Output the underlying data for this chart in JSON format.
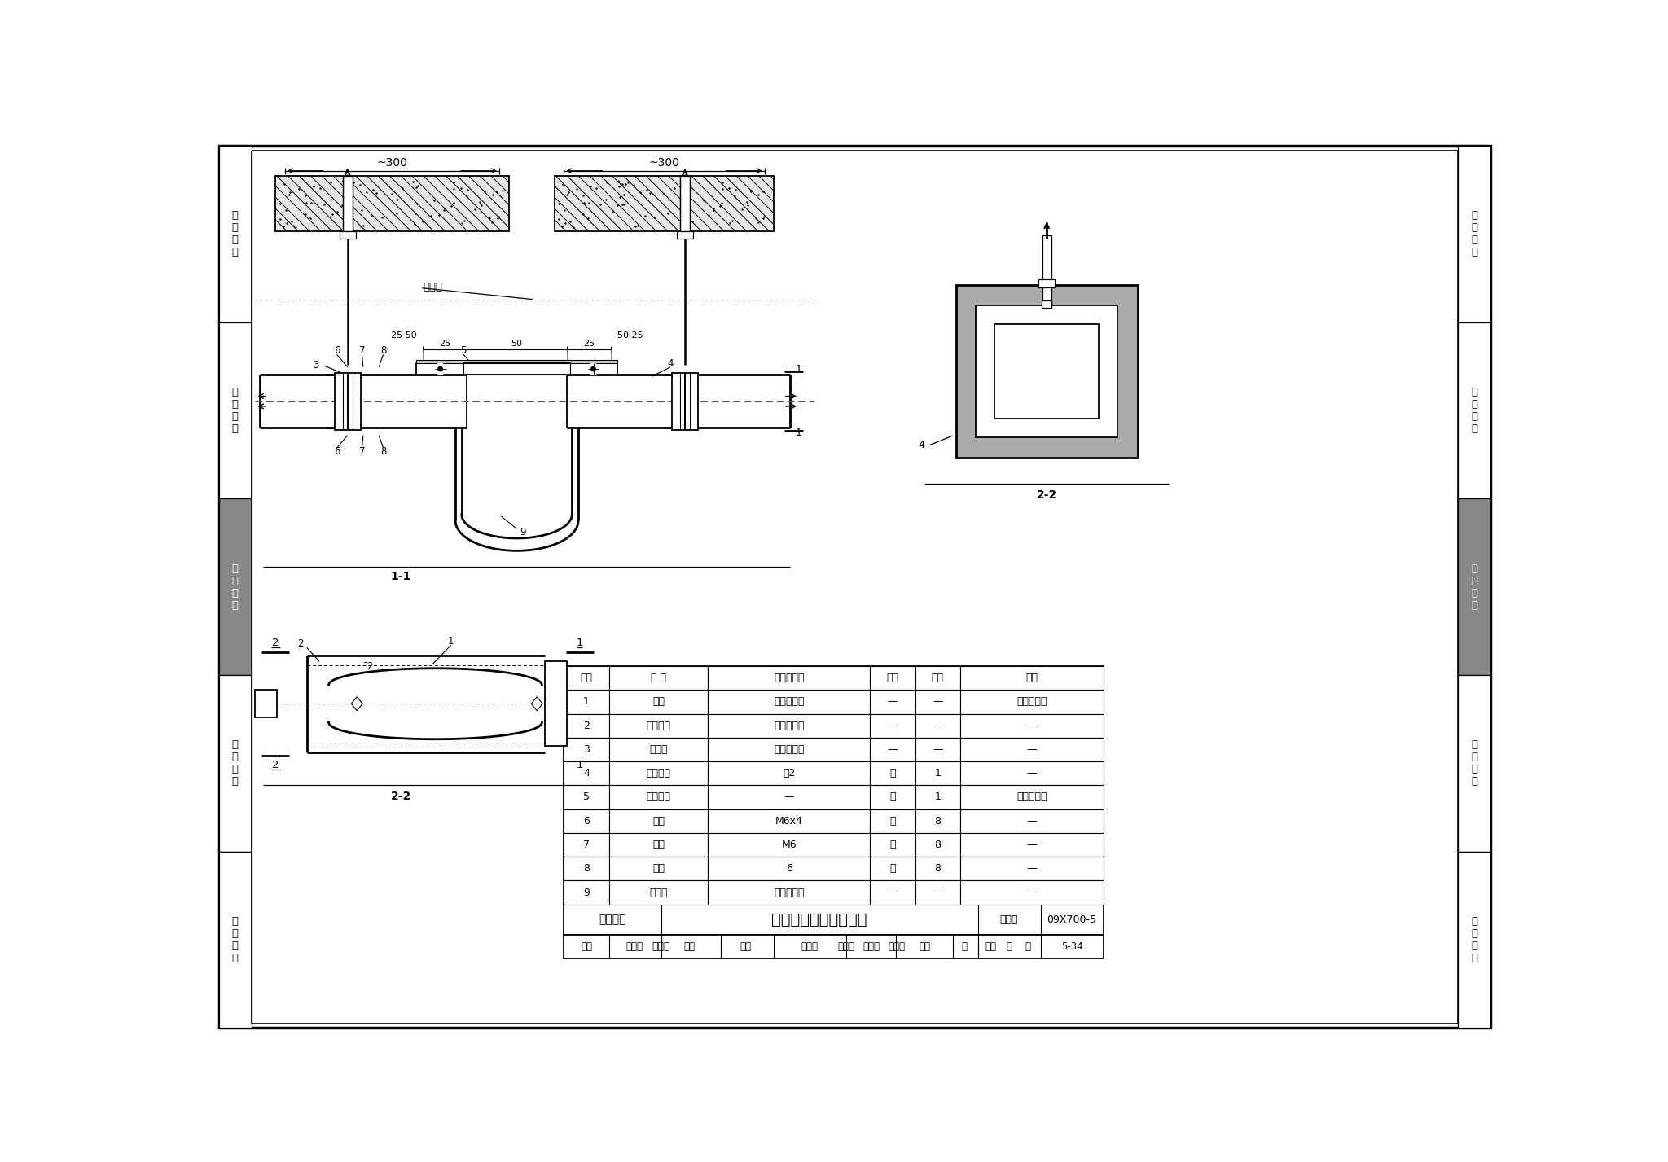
{
  "title": "金属线槽过伸缩缝安装",
  "subtitle_left": "缆线敷设",
  "fig_number": "09X700-5",
  "page": "5-34",
  "bg_color": "#ffffff",
  "left_tabs": [
    "机\n房\n工\n程",
    "供\n电\n电\n源",
    "缆\n线\n敷\n设",
    "设\n备\n安\n装",
    "防\n雷\n接\n地"
  ],
  "right_tabs": [
    "机\n房\n工\n程",
    "供\n电\n电\n源",
    "缆\n线\n敷\n设",
    "设\n备\n安\n装",
    "防\n雷\n接\n地"
  ],
  "tab_colors": [
    "#ffffff",
    "#ffffff",
    "#888888",
    "#ffffff",
    "#ffffff"
  ],
  "tab_text_colors": [
    "#000000",
    "#000000",
    "#ffffff",
    "#000000",
    "#000000"
  ],
  "table_headers": [
    "编号",
    "名 称",
    "型号及规格",
    "单位",
    "数量",
    "备注"
  ],
  "table_col_widths": [
    72,
    158,
    258,
    72,
    72,
    228
  ],
  "table_rows": [
    [
      "1",
      "线槽",
      "见工程设计",
      "—",
      "—",
      "与线槽配套"
    ],
    [
      "2",
      "线槽吊具",
      "见工程设计",
      "—",
      "—",
      "—"
    ],
    [
      "3",
      "线槽盖",
      "见工程设计",
      "—",
      "—",
      "—"
    ],
    [
      "4",
      "橡胶衬圈",
      "厚2",
      "块",
      "1",
      "—"
    ],
    [
      "5",
      "连接盖板",
      "—",
      "块",
      "1",
      "与线槽配套"
    ],
    [
      "6",
      "螺钉",
      "M6x4",
      "个",
      "8",
      "—"
    ],
    [
      "7",
      "螺母",
      "M6",
      "个",
      "8",
      "—"
    ],
    [
      "8",
      "垫圈",
      "6",
      "个",
      "8",
      "—"
    ],
    [
      "9",
      "跨接线",
      "见工程设计",
      "—",
      "—",
      "—"
    ]
  ],
  "dim_300": "~300",
  "label_expansion": "伸缩缝",
  "label_22": "2-2",
  "label_11": "1-1",
  "label_4": "4"
}
